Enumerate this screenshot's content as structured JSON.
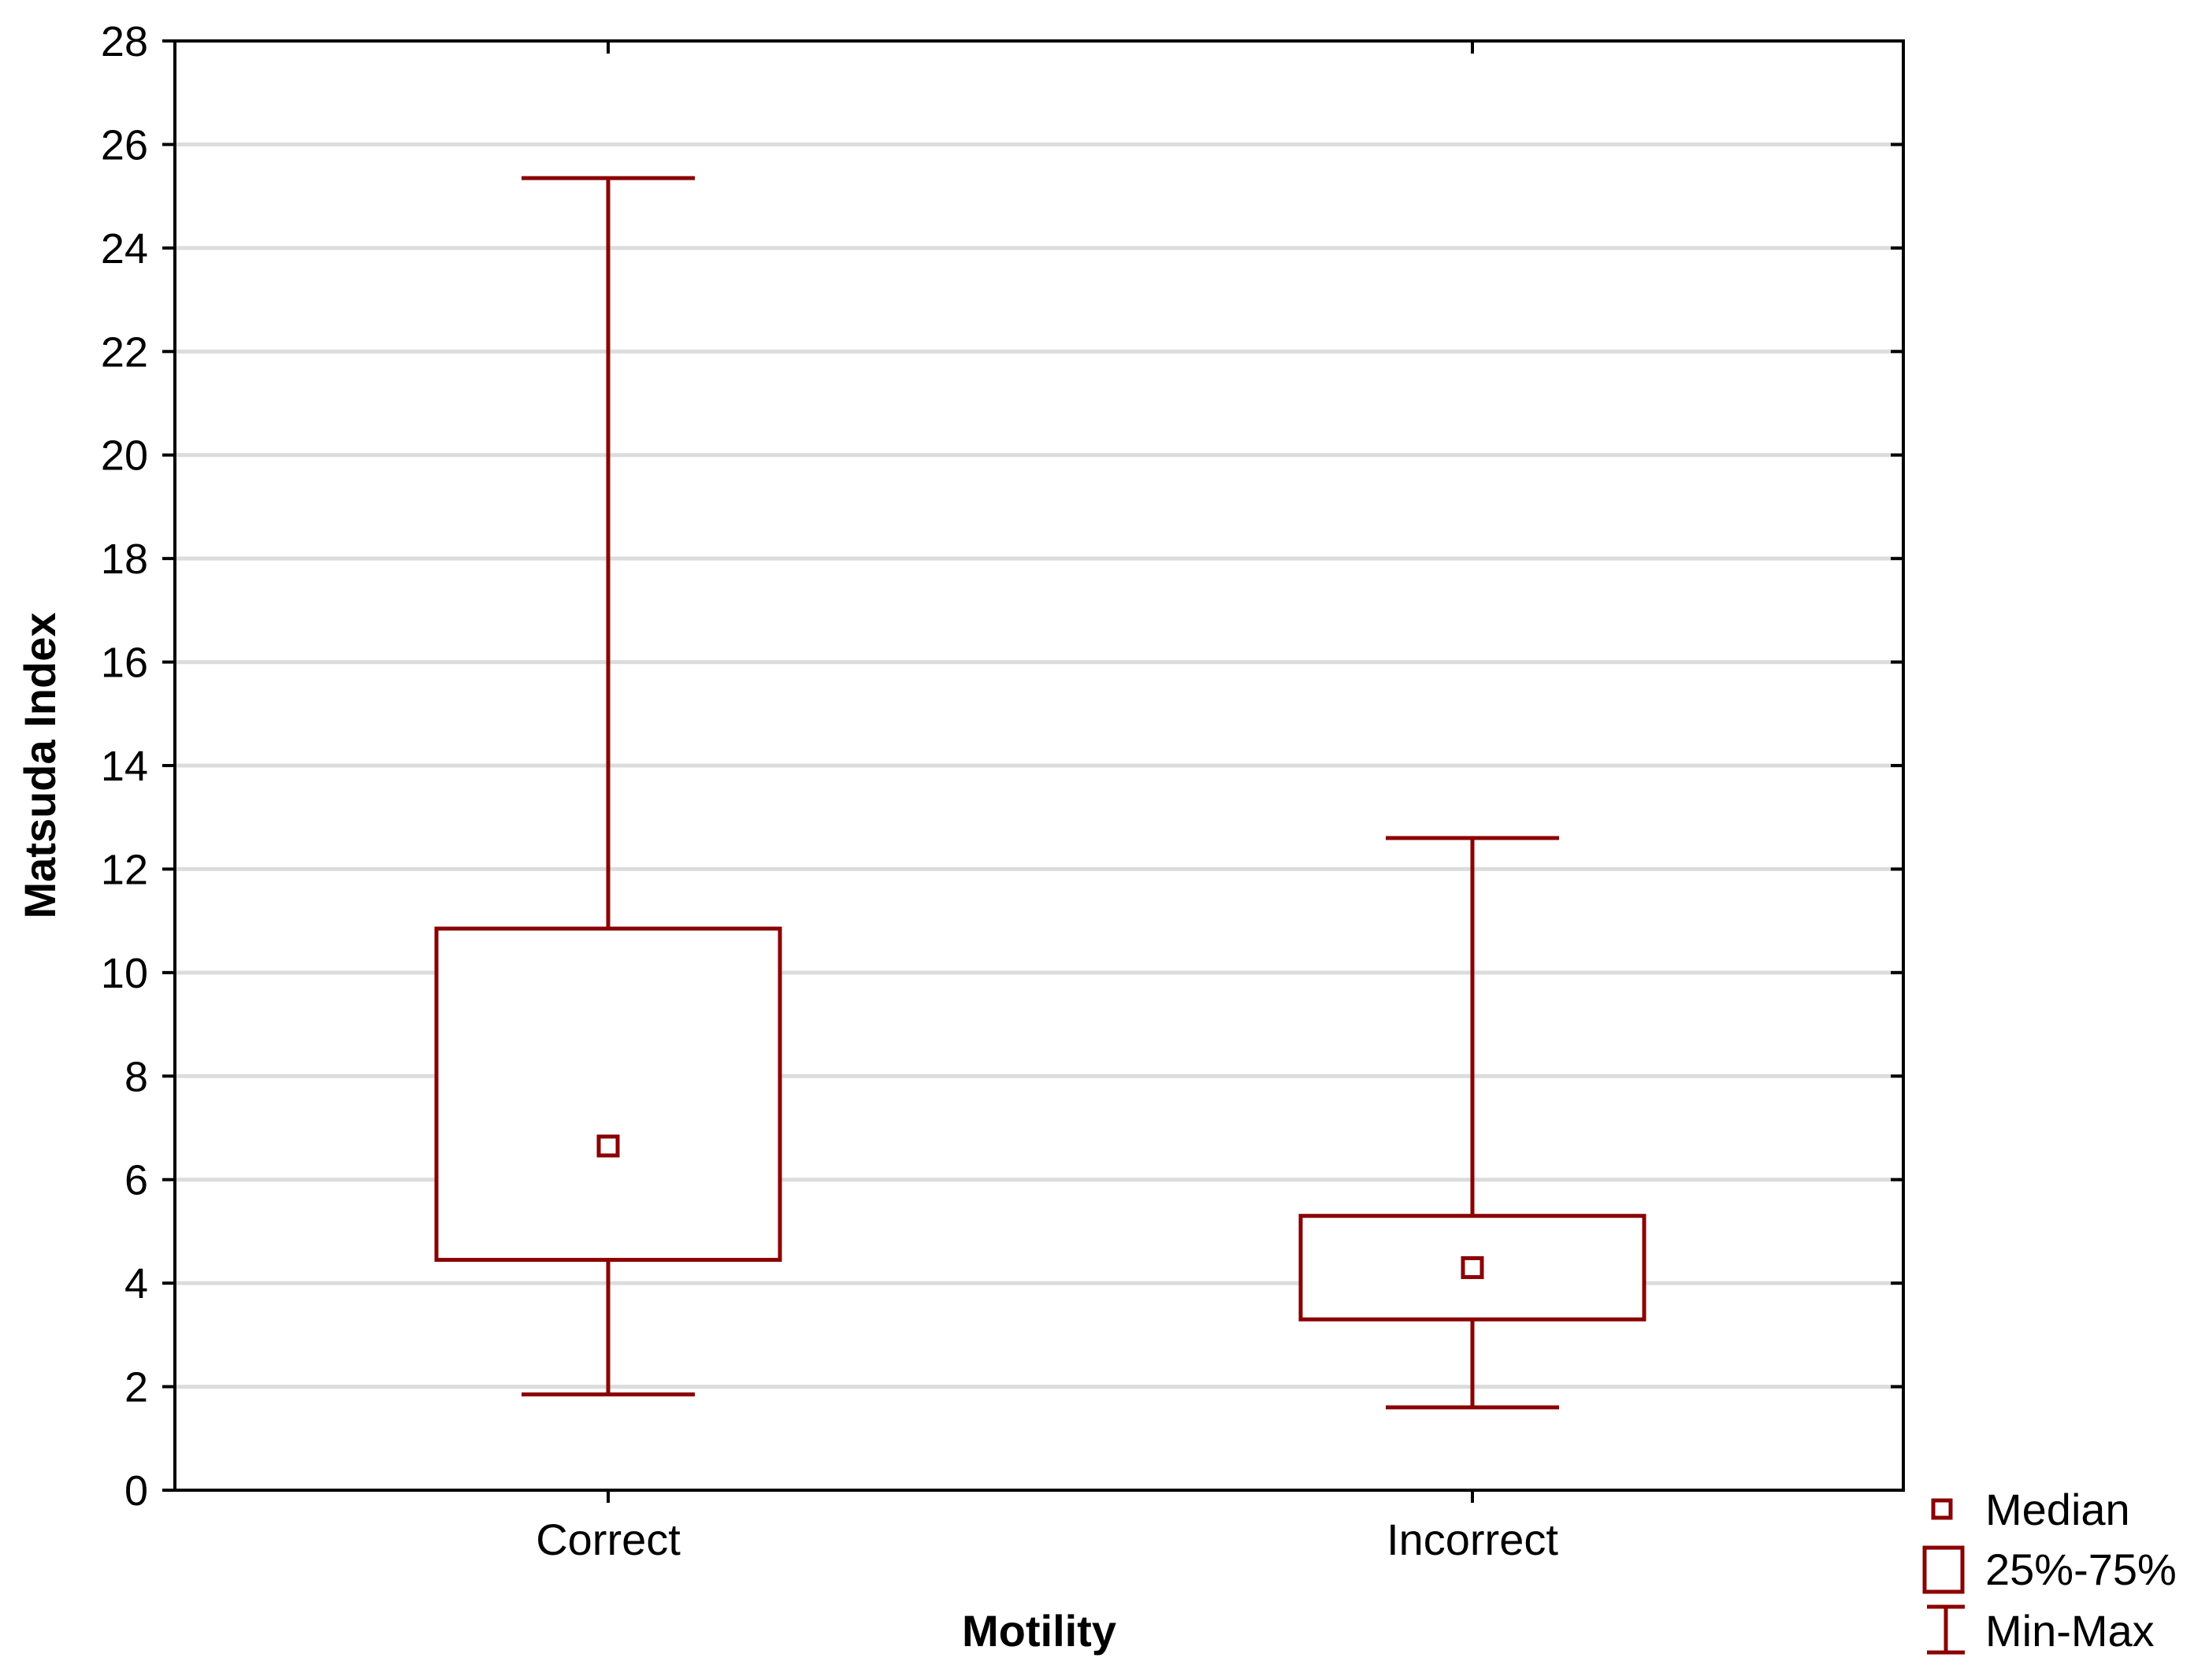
{
  "chart_data": {
    "type": "box",
    "xlabel": "Motility",
    "ylabel": "Matsuda Index",
    "ylim": [
      0,
      28
    ],
    "yticks": [
      0,
      2,
      4,
      6,
      8,
      10,
      12,
      14,
      16,
      18,
      20,
      22,
      24,
      26,
      28
    ],
    "grid": true,
    "categories": [
      "Correct",
      "Incorrect"
    ],
    "boxes": [
      {
        "category": "Correct",
        "min": 1.85,
        "q1": 4.45,
        "median": 6.65,
        "q3": 10.85,
        "max": 25.35
      },
      {
        "category": "Incorrect",
        "min": 1.6,
        "q1": 3.3,
        "median": 4.3,
        "q3": 5.3,
        "max": 12.6
      }
    ],
    "legend": {
      "position": "bottom-right",
      "entries": [
        {
          "symbol": "median-marker",
          "label": "Median"
        },
        {
          "symbol": "box",
          "label": "25%-75%"
        },
        {
          "symbol": "whisker",
          "label": "Min-Max"
        }
      ]
    },
    "colors": {
      "series": "#8b0000",
      "grid": "#dcdcdc",
      "axis": "#000000"
    }
  }
}
